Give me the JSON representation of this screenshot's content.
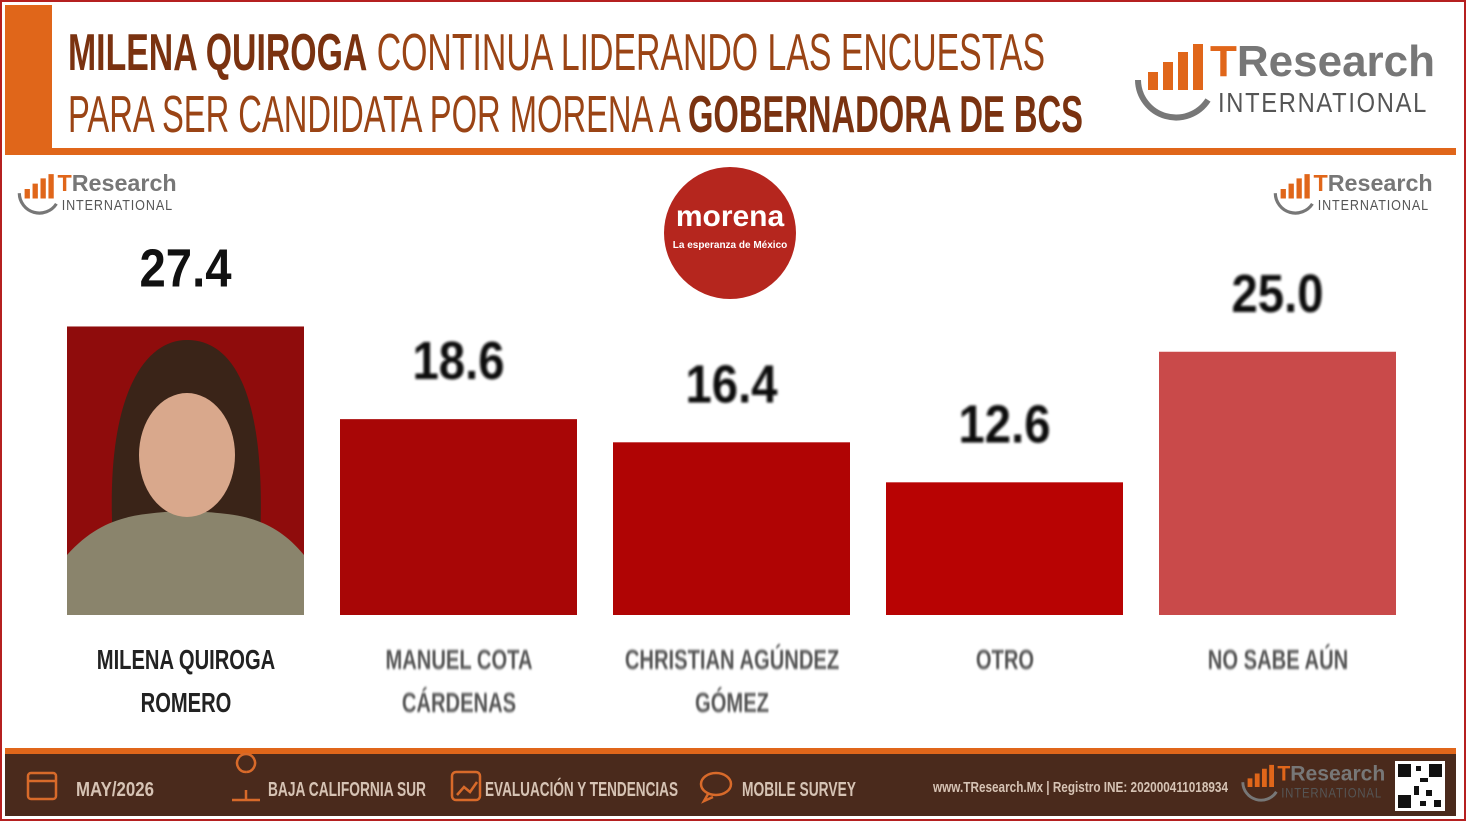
{
  "chart_data": {
    "type": "bar",
    "title_line1": {
      "bold": "MILENA QUIROGA",
      "rest": " CONTINUA LIDERANDO LAS ENCUESTAS"
    },
    "title_line2": {
      "rest": "PARA SER CANDIDATA POR MORENA A ",
      "bold": "GOBERNADORA DE BCS"
    },
    "logo": {
      "t": "T",
      "rest": "Research",
      "sub": "INTERNATIONAL"
    },
    "party_logo": {
      "name": "morena",
      "slogan": "La esperanza de México"
    },
    "categories": [
      "MILENA QUIROGA ROMERO",
      "MANUEL COTA CÁRDENAS",
      "CHRISTIAN AGÚNDEZ GÓMEZ",
      "OTRO",
      "NO SABE AÚN"
    ],
    "values": [
      27.4,
      18.6,
      16.4,
      12.6,
      25.0
    ],
    "value_labels": [
      "27.4",
      "18.6",
      "16.4",
      "12.6",
      "25.0"
    ],
    "colors": [
      "#8f0c0c",
      "#a80606",
      "#b00404",
      "#b80303",
      "#c94a4a"
    ],
    "footer": {
      "date": "MAY/2026",
      "place": "BAJA CALIFORNIA SUR",
      "study": "EVALUACIÓN Y TENDENCIAS",
      "method": "MOBILE SURVEY",
      "site": "www.TResearch.Mx | Registro INE: 202000411018934"
    }
  }
}
